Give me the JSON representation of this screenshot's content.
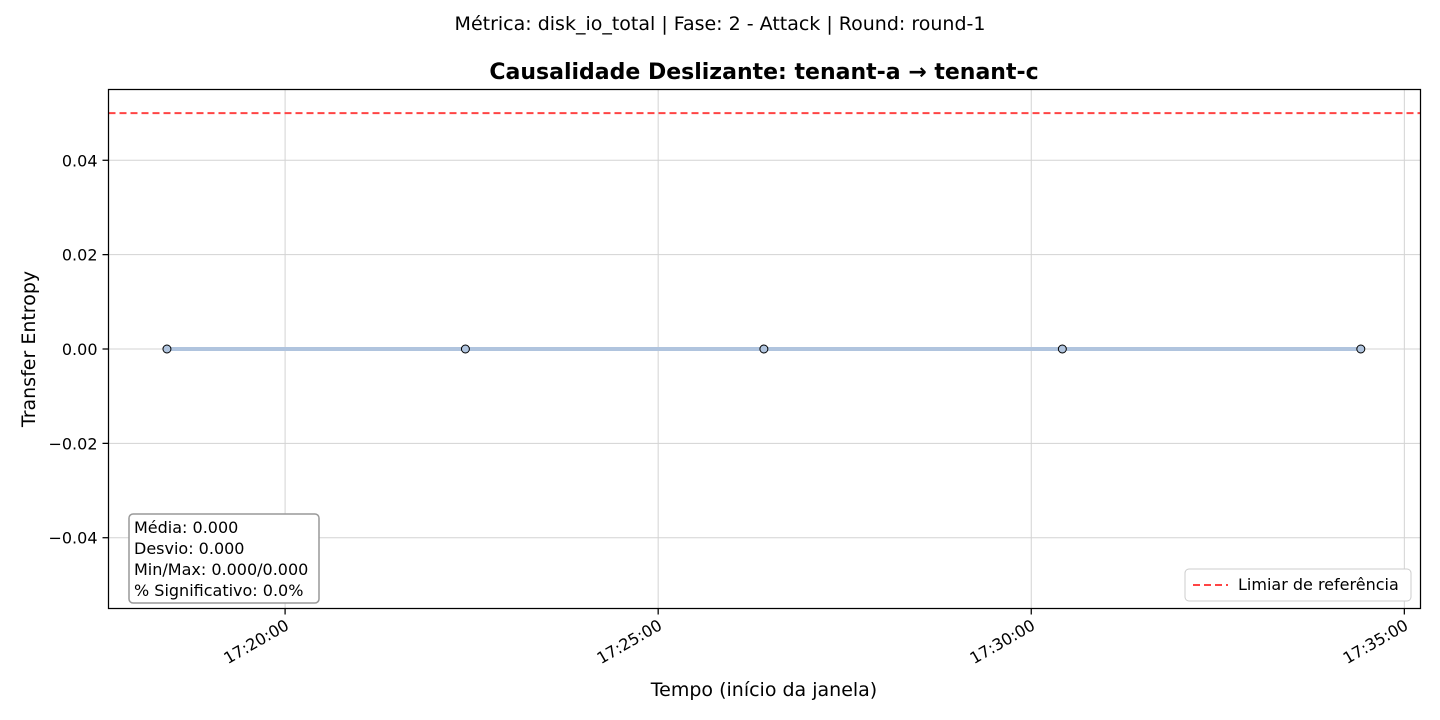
{
  "chart_data": {
    "type": "line",
    "suptitle": "Métrica: disk_io_total | Fase: 2 - Attack | Round: round-1",
    "title": "Causalidade Deslizante: tenant-a → tenant-c",
    "xlabel": "Tempo (início da janela)",
    "ylabel": "Transfer Entropy",
    "x_ticks": [
      "17:20:00",
      "17:25:00",
      "17:30:00",
      "17:35:00"
    ],
    "y_ticks": [
      "0.04",
      "0.02",
      "0.00",
      "−0.02",
      "−0.04"
    ],
    "y_tick_values": [
      0.04,
      0.02,
      0.0,
      -0.02,
      -0.04
    ],
    "xlim": [
      "17:17:38",
      "17:35:13"
    ],
    "ylim": [
      -0.055,
      0.055
    ],
    "grid": true,
    "series": [
      {
        "x": [
          "17:18:25",
          "17:22:25",
          "17:26:25",
          "17:30:25",
          "17:34:25"
        ],
        "values": [
          0.0,
          0.0,
          0.0,
          0.0,
          0.0
        ],
        "color": "#b0c4de",
        "marker_fill": "#b0c4de",
        "marker_edge": "#000000"
      }
    ],
    "threshold": {
      "value": 0.05,
      "label": "Limiar de referência",
      "color": "#ff4444",
      "style": "dashed"
    },
    "legend_position": "lower-right",
    "stats_box": {
      "position": "lower-left",
      "lines": [
        "Média: 0.000",
        "Desvio: 0.000",
        "Min/Max: 0.000/0.000",
        "% Significativo: 0.0%"
      ]
    }
  }
}
